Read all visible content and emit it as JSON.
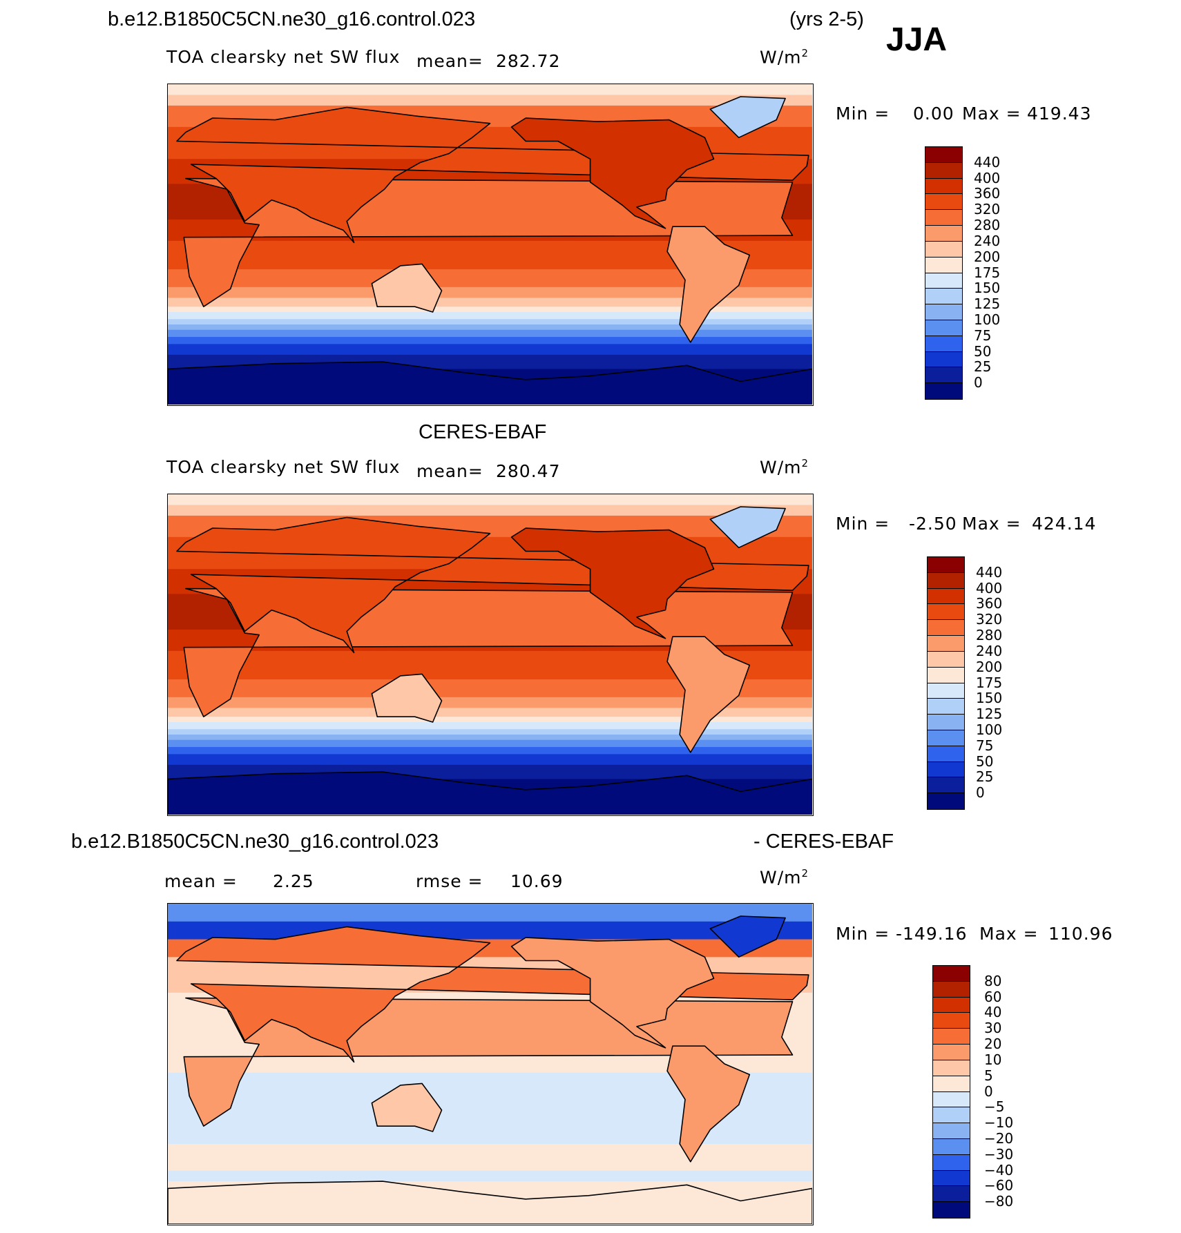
{
  "header": {
    "case_name": "b.e12.B1850C5CN.ne30_g16.control.023",
    "years": "(yrs 2-5)",
    "season": "JJA"
  },
  "panel1": {
    "variable": "TOA clearsky net SW flux",
    "mean_label": "mean=",
    "mean_value": "282.72",
    "units": "W/m",
    "units_exp": "2",
    "min_label": "Min =",
    "min_value": "0.00",
    "max_label": "Max =",
    "max_value": "419.43"
  },
  "panel2": {
    "title": "CERES-EBAF",
    "variable": "TOA clearsky net SW flux",
    "mean_label": "mean=",
    "mean_value": "280.47",
    "units": "W/m",
    "units_exp": "2",
    "min_label": "Min =",
    "min_value": "-2.50",
    "max_label": "Max =",
    "max_value": "424.14"
  },
  "panel3": {
    "title_left": "b.e12.B1850C5CN.ne30_g16.control.023",
    "title_right": "- CERES-EBAF",
    "mean_label": "mean =",
    "mean_value": "2.25",
    "rmse_label": "rmse =",
    "rmse_value": "10.69",
    "units": "W/m",
    "units_exp": "2",
    "min_label": "Min =",
    "min_value": "-149.16",
    "max_label": "Max =",
    "max_value": "110.96"
  },
  "colorbar_abs": {
    "labels": [
      "440",
      "400",
      "360",
      "320",
      "280",
      "240",
      "200",
      "175",
      "150",
      "125",
      "100",
      "75",
      "50",
      "25",
      "0"
    ],
    "colors": [
      "#8b0000",
      "#b22200",
      "#d33000",
      "#e94a10",
      "#f66d35",
      "#fb9a6b",
      "#fdc7a8",
      "#fde8d8",
      "#d6e8fa",
      "#b0d0f7",
      "#88b2f2",
      "#5b8ff0",
      "#2f63ee",
      "#1138d0",
      "#0b1f9c",
      "#000a7a"
    ]
  },
  "colorbar_diff": {
    "labels": [
      "80",
      "60",
      "40",
      "30",
      "20",
      "10",
      "5",
      "0",
      "-5",
      "-10",
      "-20",
      "-30",
      "-40",
      "-60",
      "-80"
    ],
    "colors": [
      "#8b0000",
      "#b22200",
      "#d33000",
      "#e94a10",
      "#f66d35",
      "#fb9a6b",
      "#fdc7a8",
      "#fde8d8",
      "#d6e8fa",
      "#b0d0f7",
      "#88b2f2",
      "#5b8ff0",
      "#2f63ee",
      "#1138d0",
      "#0b1f9c",
      "#000a7a"
    ]
  }
}
